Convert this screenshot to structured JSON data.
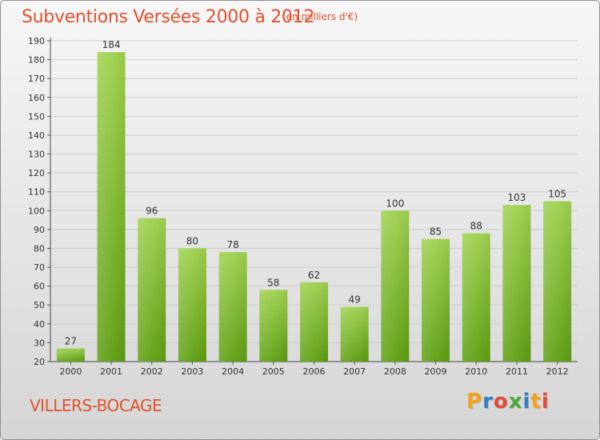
{
  "header": {
    "title": "Subventions Versées 2000 à 2012",
    "unit": "(en milliers d'€)"
  },
  "footer": {
    "commune": "VILLERS-BOCAGE",
    "logo_text": "Proxiti",
    "logo_colors": [
      "#f2a11b",
      "#2f7fc1",
      "#e24a3b",
      "#4aa83a",
      "#2f7fc1",
      "#f2a11b",
      "#e24a3b"
    ]
  },
  "colors": {
    "title": "#e0522c",
    "bar_top": "#9fd14f",
    "bar_bottom": "#5e9e12",
    "grid": "#cfcfcf"
  },
  "chart_data": {
    "type": "bar",
    "title": "Subventions Versées 2000 à 2012",
    "subtitle": "(en milliers d'€)",
    "categories": [
      "2000",
      "2001",
      "2002",
      "2003",
      "2004",
      "2005",
      "2006",
      "2007",
      "2008",
      "2009",
      "2010",
      "2011",
      "2012"
    ],
    "values": [
      27,
      184,
      96,
      80,
      78,
      58,
      62,
      49,
      100,
      85,
      88,
      103,
      105
    ],
    "ylim": [
      20,
      190
    ],
    "yticks": [
      20,
      30,
      40,
      50,
      60,
      70,
      80,
      90,
      100,
      110,
      120,
      130,
      140,
      150,
      160,
      170,
      180,
      190
    ],
    "grid": true,
    "xlabel": "",
    "ylabel": ""
  }
}
